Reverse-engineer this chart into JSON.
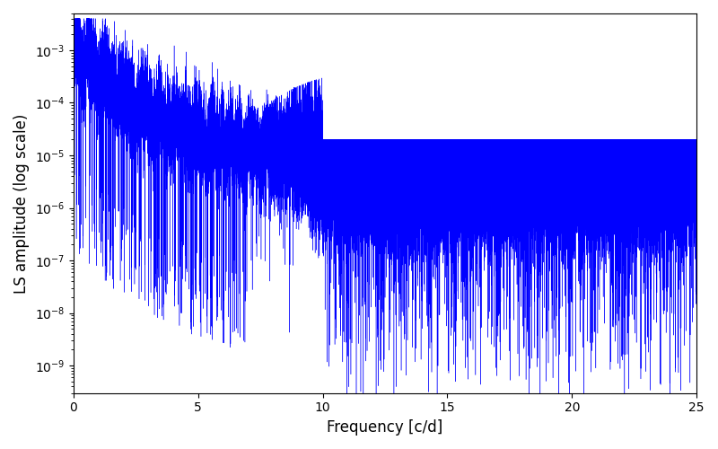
{
  "xlabel": "Frequency [c/d]",
  "ylabel": "LS amplitude (log scale)",
  "xlim": [
    0,
    25
  ],
  "ylim": [
    3e-10,
    0.005
  ],
  "line_color": "#0000ff",
  "background_color": "#ffffff",
  "figsize": [
    8.0,
    5.0
  ],
  "dpi": 100,
  "freq_max": 25.0,
  "seed": 42
}
